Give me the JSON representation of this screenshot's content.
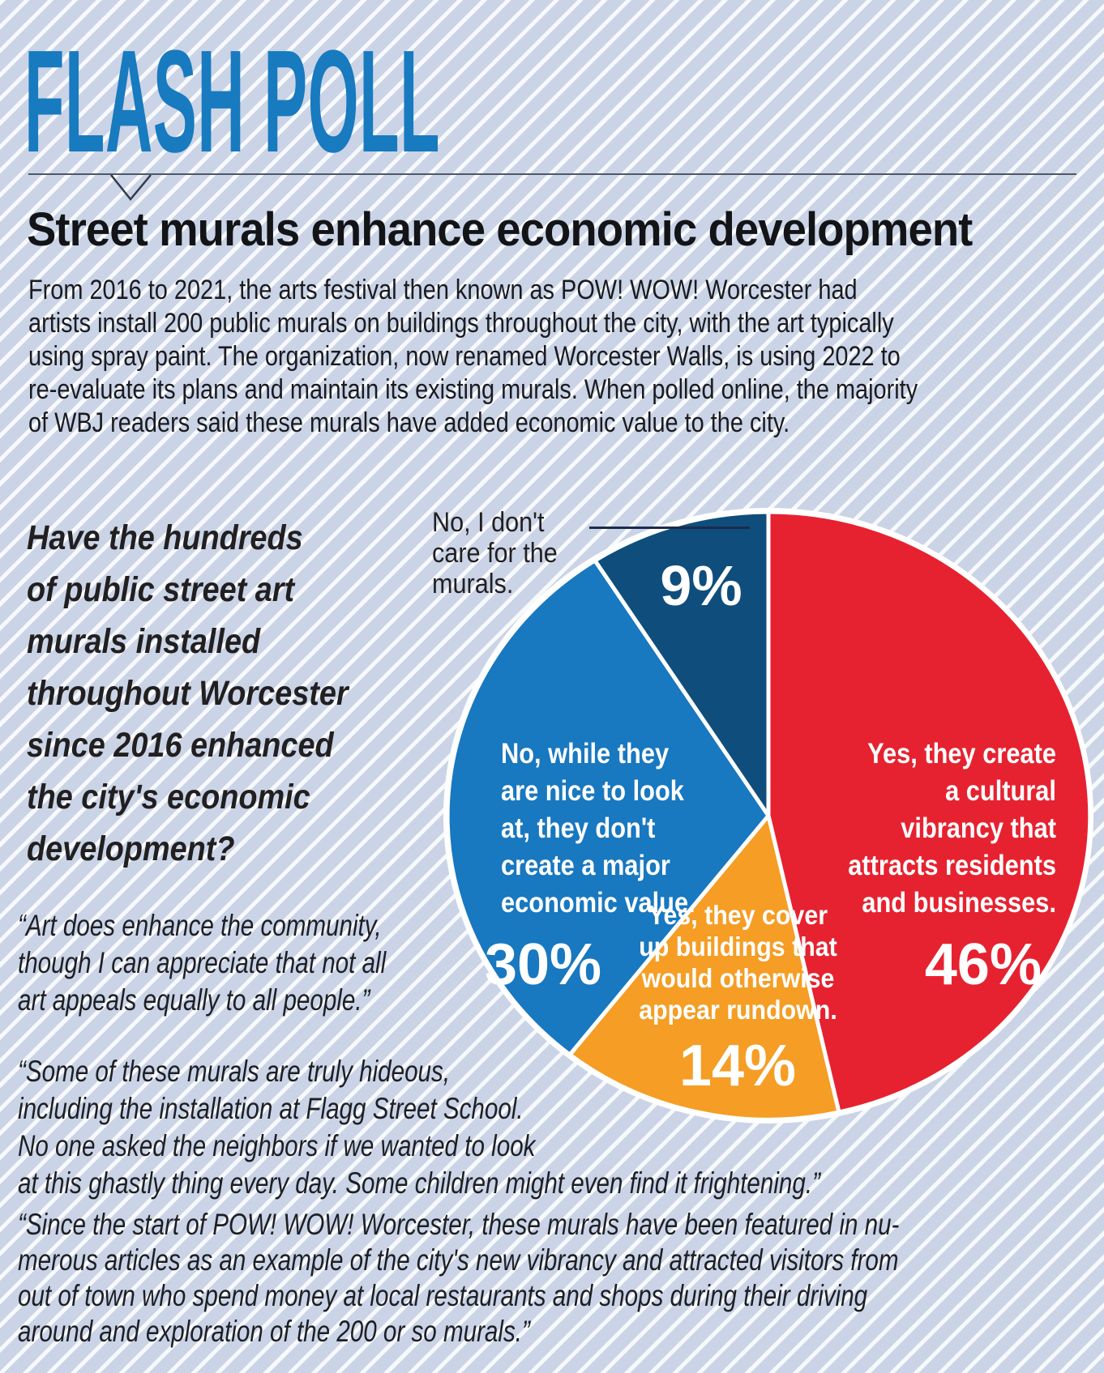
{
  "page": {
    "background_color": "#cad4e6",
    "stripe_color": "#f7f9fc"
  },
  "masthead": {
    "title": "FLASH POLL",
    "accent_color": "#187abf"
  },
  "article": {
    "headline": "Street murals enhance economic development",
    "intro_lines": [
      "From 2016 to 2021, the arts festival then known as POW! WOW! Worcester had",
      "artists install 200 public murals on buildings throughout the city, with the art typically",
      "using spray paint. The organization, now renamed Worcester Walls, is using 2022 to",
      "re-evaluate its plans and maintain its existing murals. When polled online, the majority",
      "of WBJ readers said these murals have added economic value to the city."
    ],
    "question_lines": [
      "Have the hundreds",
      "of public street art",
      "murals installed",
      "throughout Worcester",
      "since 2016 enhanced",
      "the city's economic",
      "development?"
    ],
    "quotes": [
      {
        "lines": [
          "“Art does enhance the community,",
          "though I can appreciate that not all",
          "art appeals equally to all people.”"
        ]
      },
      {
        "lines": [
          "“Some of these murals are truly hideous,",
          "including the installation at Flagg Street School.",
          "No one asked the neighbors if we wanted to look",
          "at this ghastly thing every day. Some children might even find it frightening.”"
        ]
      },
      {
        "lines": [
          "“Since the start of POW! WOW! Worcester, these murals have been featured in nu-",
          "merous articles as an example of the city's new vibrancy and attracted visitors from",
          "out of town who spend money at local restaurants and shops during their driving",
          "around and exploration of the 200 or so murals.”"
        ]
      }
    ]
  },
  "chart_data": {
    "type": "pie",
    "title": "Street murals enhance economic development",
    "question": "Have the hundreds of public street art murals installed throughout Worcester since 2016 enhanced the city's economic development?",
    "unit": "%",
    "start_angle_deg": 0,
    "direction": "clockwise",
    "values_sum_shown": 99,
    "slices": [
      {
        "label": "Yes, they create a cultural vibrancy that attracts residents and businesses.",
        "label_lines": [
          "Yes, they create",
          "a cultural",
          "vibrancy that",
          "attracts residents",
          "and businesses."
        ],
        "value": 46,
        "pct": "46%",
        "color": "#e62230"
      },
      {
        "label": "Yes, they cover up buildings that would otherwise appear rundown.",
        "label_lines": [
          "Yes, they cover",
          "up buildings that",
          "would otherwise",
          "appear rundown."
        ],
        "value": 14,
        "pct": "14%",
        "color": "#f59d24"
      },
      {
        "label": "No, while they are nice to look at, they don't create a major economic value.",
        "label_lines": [
          "No, while they",
          "are nice to look",
          "at, they don't",
          "create a major",
          "economic value."
        ],
        "value": 30,
        "pct": "30%",
        "color": "#1878c0"
      },
      {
        "label": "No, I don't care for the murals.",
        "label_lines": [
          "No, I don't",
          "care for the",
          "murals."
        ],
        "value": 9,
        "pct": "9%",
        "color": "#0f4e7c"
      }
    ]
  }
}
